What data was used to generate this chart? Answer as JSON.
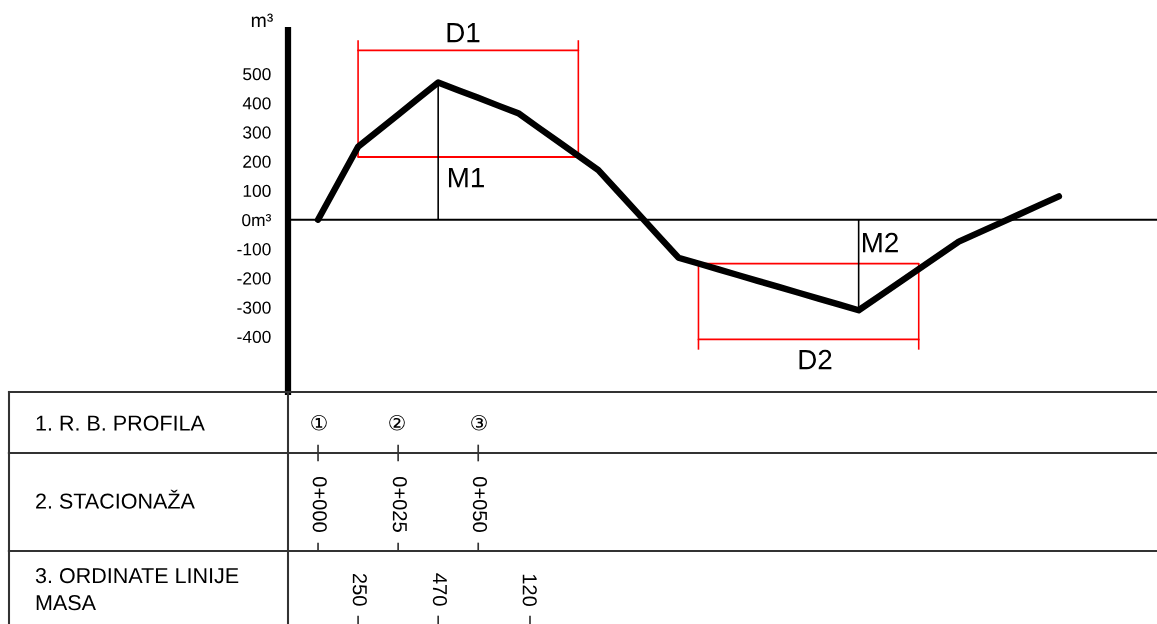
{
  "chart_data": {
    "type": "line",
    "ylabel": "m³",
    "xlabel": "2. STACIONAŽA",
    "categories": [
      "0+000",
      null,
      null,
      null,
      "0+025",
      null,
      null,
      null,
      "0+050",
      null,
      null,
      null,
      null,
      null,
      null,
      null,
      null,
      null,
      null,
      null,
      null,
      null,
      null,
      null,
      null,
      null,
      null,
      null,
      null,
      null,
      null,
      null,
      null,
      null,
      null,
      null,
      null,
      null,
      null,
      null,
      null,
      null
    ],
    "ylim": [
      -590,
      650
    ],
    "yticks": [
      500,
      400,
      300,
      200,
      100,
      {
        "value": 0,
        "label": "0m³"
      },
      -100,
      -200,
      -300,
      -400
    ],
    "series": [
      {
        "color": "#000000",
        "values": [
          0,
          125,
          250,
          305,
          360,
          415,
          470,
          444,
          418,
          391,
          365,
          316,
          268,
          219,
          170,
          95,
          20,
          -55,
          -130,
          -150,
          -170,
          -190,
          -210,
          -230,
          -250,
          -270,
          -290,
          -310,
          -263,
          -216,
          -169,
          -122,
          -75,
          -44,
          -13,
          18,
          49,
          80,
          null,
          null,
          null,
          null
        ],
        "value_labels": [
          null,
          null,
          "250",
          null,
          null,
          null,
          "470",
          null,
          null,
          null,
          null,
          null,
          null,
          null,
          null,
          null,
          null,
          null,
          null,
          null,
          null,
          null,
          null,
          null,
          null,
          null,
          null,
          null,
          null,
          null,
          null,
          null,
          null,
          null,
          null,
          null,
          null,
          null,
          null,
          null,
          null,
          null
        ]
      },
      {
        "color": "#ff0000",
        "values": [
          null,
          null,
          215,
          215,
          215,
          215,
          215,
          215,
          215,
          215,
          215,
          215,
          215,
          215,
          null,
          null,
          null,
          null,
          null,
          -150,
          -150,
          -150,
          -150,
          -150,
          -150,
          -150,
          -150,
          -150,
          -150,
          -150,
          -150,
          null,
          null,
          null,
          null,
          null,
          null,
          null,
          null,
          null,
          null,
          null
        ]
      },
      {
        "color": "#ff0000",
        "values": [
          null,
          null,
          580,
          580,
          580,
          580,
          580,
          580,
          580,
          580,
          580,
          580,
          580,
          580,
          null,
          null,
          null,
          null,
          null,
          -410,
          -410,
          -410,
          -410,
          -410,
          -410,
          -410,
          -410,
          -410,
          -410,
          -410,
          -410,
          null,
          null,
          null,
          null,
          null,
          null,
          null,
          null,
          null,
          null,
          null
        ]
      },
      {
        "type": "bar",
        "values": [
          null,
          null,
          400,
          null,
          null,
          null,
          470,
          null,
          null,
          null,
          null,
          null,
          null,
          400,
          null,
          null,
          null,
          null,
          null,
          -295,
          null,
          null,
          null,
          null,
          null,
          null,
          null,
          -310,
          null,
          null,
          -295,
          null,
          null,
          null,
          null,
          null,
          null,
          null,
          null,
          null,
          null,
          null
        ],
        "base": [
          null,
          null,
          215,
          null,
          null,
          null,
          0,
          null,
          null,
          null,
          null,
          null,
          null,
          215,
          null,
          null,
          null,
          null,
          null,
          -150,
          null,
          null,
          null,
          null,
          null,
          null,
          null,
          0,
          null,
          null,
          -150,
          null,
          null,
          null,
          null,
          null,
          null,
          null,
          null,
          null,
          null,
          null
        ],
        "colors": [
          null,
          null,
          "#ff0000",
          null,
          null,
          null,
          "#000000",
          null,
          null,
          null,
          null,
          null,
          null,
          "#ff0000",
          null,
          null,
          null,
          null,
          null,
          "#ff0000",
          null,
          null,
          null,
          null,
          null,
          null,
          null,
          "#000000",
          null,
          null,
          "#ff0000",
          null,
          null,
          null,
          null,
          null,
          null,
          null,
          null,
          null,
          null,
          null
        ]
      }
    ],
    "ref_lines": [
      {
        "axis": "y",
        "value": 0,
        "color": "#000000"
      }
    ],
    "annotations": [
      "D1",
      "M1",
      "M2",
      "D2",
      "1. R. B. PROFILA",
      "①",
      "②",
      "③",
      "3. ORDINATE LINIJE\nMASA",
      "120"
    ]
  }
}
